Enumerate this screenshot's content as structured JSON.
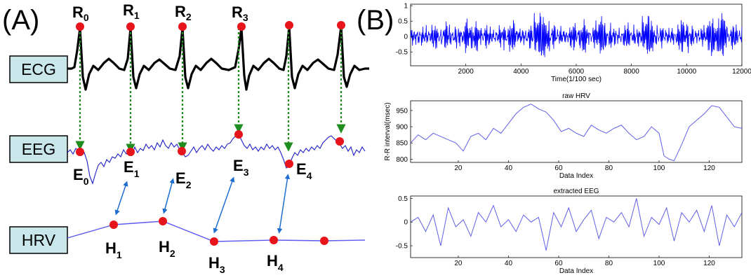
{
  "panel_a": {
    "label": "(A)",
    "signals": {
      "ecg": "ECG",
      "eeg": "EEG",
      "hrv": "HRV"
    },
    "r_peaks": [
      {
        "base": "R",
        "sub": "0"
      },
      {
        "base": "R",
        "sub": "1"
      },
      {
        "base": "R",
        "sub": "2"
      },
      {
        "base": "R",
        "sub": "3"
      }
    ],
    "e_points": [
      {
        "base": "E",
        "sub": "0"
      },
      {
        "base": "E",
        "sub": "1"
      },
      {
        "base": "E",
        "sub": "2"
      },
      {
        "base": "E",
        "sub": "3"
      },
      {
        "base": "E",
        "sub": "4"
      }
    ],
    "h_points": [
      {
        "base": "H",
        "sub": "1"
      },
      {
        "base": "H",
        "sub": "2"
      },
      {
        "base": "H",
        "sub": "3"
      },
      {
        "base": "H",
        "sub": "4"
      }
    ],
    "colors": {
      "marker": "#e8141c",
      "ecg": "#000000",
      "eeg": "#1c1cc8",
      "hrv": "#5a5af0",
      "dashed": "#1e8c1e",
      "link": "#1e6ed2"
    }
  },
  "panel_b": {
    "label": "(B)",
    "line_colors": {
      "raw": "#0000ff",
      "light": "#6060e6"
    }
  },
  "chart_data": [
    {
      "type": "line",
      "title": "",
      "xlabel": "Time(1/100 sec)",
      "ylabel": "",
      "xlim": [
        0,
        12000
      ],
      "ylim": [
        -0.95,
        1.05
      ],
      "xticks": [
        "2000",
        "4000",
        "6000",
        "8000",
        "10000",
        "12000"
      ],
      "yticks": [
        "1",
        "0.5",
        "0",
        "-0.5"
      ],
      "series": [
        {
          "values_note": "dense noisy signal approx. 0 ± 0.4 with spikes to ±1",
          "values": [
            0.05,
            -0.1,
            0.2,
            -0.3,
            0.4,
            -0.2,
            0.1,
            0.6,
            -0.5,
            0.3,
            -0.1,
            0.2,
            -0.4,
            0.5,
            0.0,
            -0.3,
            0.9,
            -0.8,
            0.3,
            0.1,
            -0.2,
            0.4,
            -0.6,
            0.2,
            0.7,
            -0.4,
            0.1,
            -0.2,
            0.3,
            -0.1,
            0.8,
            -0.5,
            0.2,
            0.0,
            -0.3,
            0.6,
            -0.2,
            0.1,
            0.5,
            -0.7,
            0.9,
            -0.3,
            0.2
          ]
        }
      ]
    },
    {
      "type": "line",
      "title": "raw HRV",
      "xlabel": "Data Index",
      "ylabel": "R-R interval(msec)",
      "xlim": [
        1,
        133
      ],
      "ylim": [
        790,
        980
      ],
      "xticks": [
        "20",
        "40",
        "60",
        "80",
        "100",
        "120"
      ],
      "yticks": [
        "950",
        "900",
        "850",
        "800"
      ],
      "x": [
        1,
        4,
        7,
        10,
        13,
        16,
        19,
        22,
        25,
        28,
        31,
        34,
        37,
        40,
        43,
        46,
        49,
        52,
        55,
        58,
        61,
        64,
        67,
        70,
        73,
        76,
        79,
        82,
        85,
        88,
        91,
        94,
        97,
        100,
        102,
        104,
        106,
        109,
        112,
        115,
        118,
        121,
        124,
        127,
        130,
        133
      ],
      "series": [
        {
          "values": [
            850,
            875,
            860,
            880,
            870,
            860,
            850,
            825,
            870,
            880,
            860,
            895,
            880,
            910,
            940,
            960,
            970,
            955,
            945,
            920,
            885,
            895,
            880,
            870,
            905,
            890,
            880,
            895,
            905,
            880,
            860,
            870,
            900,
            880,
            810,
            800,
            795,
            845,
            900,
            920,
            940,
            965,
            960,
            930,
            900,
            895
          ]
        }
      ]
    },
    {
      "type": "line",
      "title": "extracted EEG",
      "xlabel": "Data Index",
      "ylabel": "",
      "xlim": [
        1,
        133
      ],
      "ylim": [
        -0.75,
        0.55
      ],
      "xticks": [
        "20",
        "40",
        "60",
        "80",
        "100",
        "120"
      ],
      "yticks": [
        "0.5",
        "0",
        "-0.5"
      ],
      "x": [
        1,
        4,
        7,
        10,
        13,
        16,
        19,
        22,
        25,
        28,
        31,
        34,
        37,
        40,
        43,
        46,
        49,
        52,
        55,
        58,
        61,
        64,
        67,
        70,
        73,
        76,
        79,
        82,
        85,
        88,
        91,
        94,
        97,
        100,
        103,
        106,
        109,
        112,
        115,
        118,
        121,
        124,
        127,
        130,
        133
      ],
      "series": [
        {
          "values": [
            0.0,
            0.1,
            -0.2,
            0.15,
            -0.5,
            0.3,
            -0.1,
            0.05,
            -0.3,
            0.2,
            0.0,
            0.35,
            -0.1,
            0.05,
            -0.2,
            0.15,
            0.0,
            0.1,
            -0.6,
            0.2,
            -0.1,
            0.3,
            -0.2,
            0.05,
            0.25,
            -0.35,
            0.1,
            0.0,
            0.2,
            -0.1,
            0.5,
            -0.3,
            0.1,
            -0.05,
            0.3,
            -0.4,
            0.2,
            0.0,
            0.25,
            -0.2,
            0.35,
            -0.5,
            0.15,
            -0.1,
            0.2
          ]
        }
      ]
    }
  ]
}
